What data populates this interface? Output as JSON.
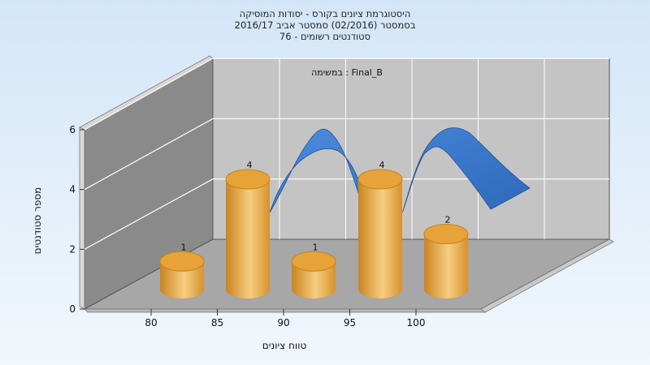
{
  "chart_data": {
    "type": "bar",
    "title_lines": [
      "היסטוגרמת ציונים בקורס - יסודות המוסיקה",
      "בסמסטר  (02/2016)  סמסטר אביב 2016/17",
      "סטודנטים רשומים - 76"
    ],
    "annotation": "במשימה : Final_B",
    "xlabel": "טווח ציונים",
    "ylabel": "מספר סטודנטים",
    "categories": [
      "80",
      "85",
      "90",
      "95",
      "100"
    ],
    "values": [
      1,
      4,
      1,
      4,
      2
    ],
    "ylim": [
      0,
      6
    ],
    "yticks": [
      "0",
      "2",
      "4",
      "6"
    ],
    "grid": true,
    "bar_color": "#E8A53A",
    "curve_color": "#3F7FD3",
    "background_top": "#D3E6F8",
    "background_bottom": "#F2F7FC"
  }
}
